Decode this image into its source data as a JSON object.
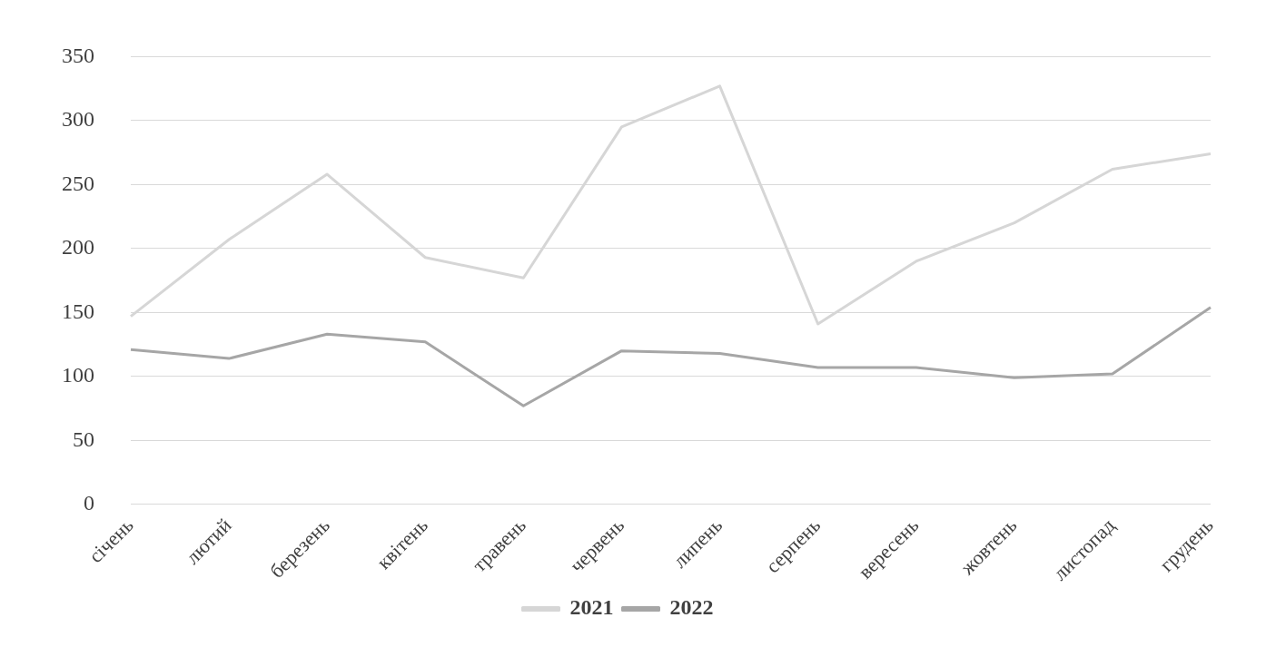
{
  "chart_data": {
    "type": "line",
    "categories": [
      "січень",
      "лютий",
      "березень",
      "квітень",
      "травень",
      "червень",
      "липень",
      "серпень",
      "вересень",
      "жовтень",
      "листопад",
      "грудень"
    ],
    "series": [
      {
        "name": "2021",
        "color": "#d6d6d6",
        "values": [
          147,
          207,
          258,
          193,
          177,
          295,
          327,
          141,
          190,
          220,
          262,
          274
        ]
      },
      {
        "name": "2022",
        "color": "#a6a6a6",
        "values": [
          121,
          114,
          133,
          127,
          77,
          120,
          118,
          107,
          107,
          99,
          102,
          154
        ]
      }
    ],
    "ylim": [
      0,
      350
    ],
    "yticks": [
      0,
      50,
      100,
      150,
      200,
      250,
      300,
      350
    ],
    "grid": "y",
    "legend": "bottom",
    "marker": "none",
    "line_style": "solid"
  }
}
